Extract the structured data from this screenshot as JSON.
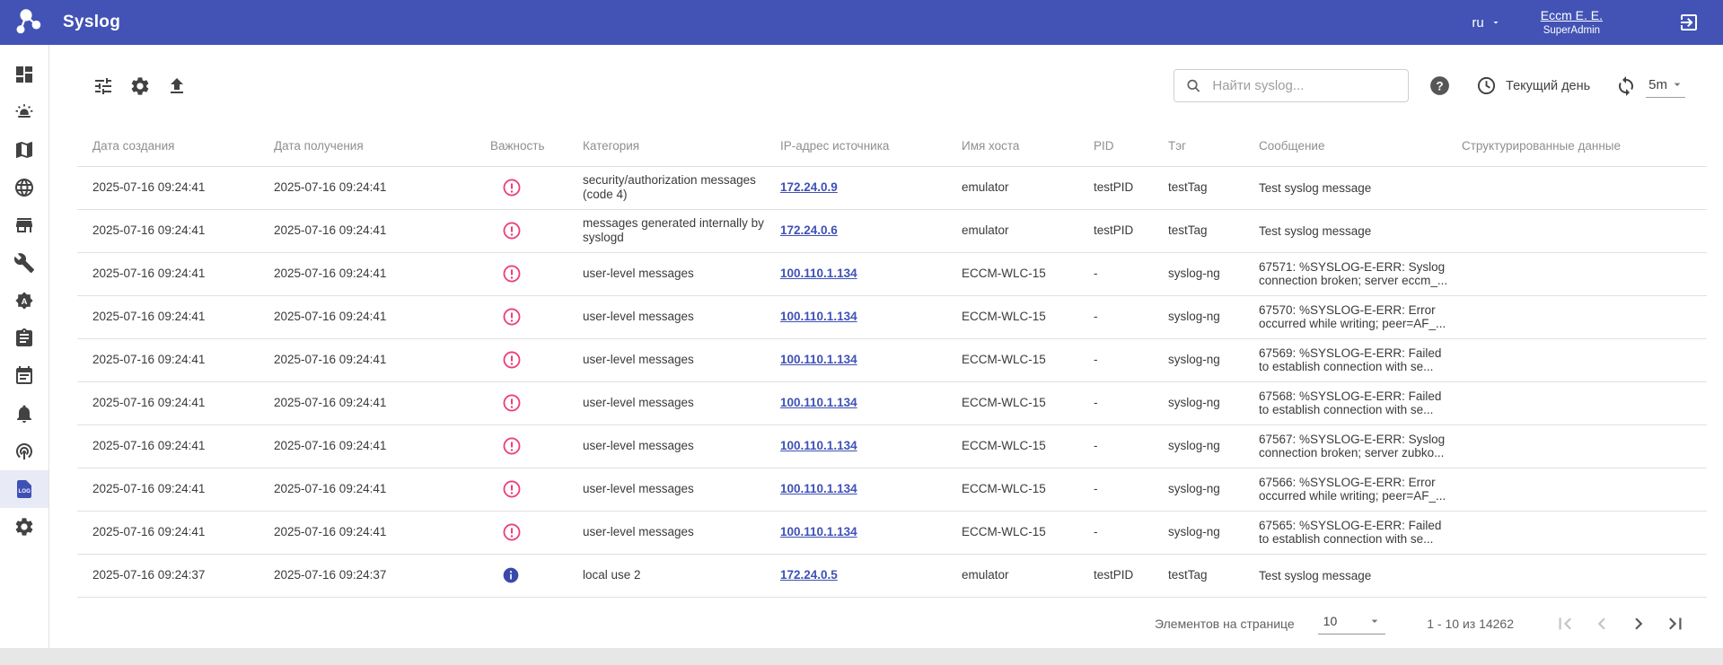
{
  "header": {
    "app_title": "Syslog",
    "language": "ru",
    "user_name": "Eccm E. E.",
    "user_role": "SuperAdmin"
  },
  "sidebar": {
    "items": [
      "dashboard",
      "alarms",
      "map",
      "network-globe",
      "storefront",
      "tools-wrench",
      "badge-a",
      "tasks-clipboard",
      "event-calendar",
      "notifications-bell",
      "podcasts",
      "syslog-log",
      "settings"
    ],
    "active_item": "syslog-log"
  },
  "toolbar": {
    "search_placeholder": "Найти syslog...",
    "period": "Текущий день",
    "interval": "5m"
  },
  "table": {
    "columns": [
      "Дата создания",
      "Дата получения",
      "Важность",
      "Категория",
      "IP-адрес источника",
      "Имя хоста",
      "PID",
      "Тэг",
      "Сообщение",
      "Структурированные данные"
    ],
    "rows": [
      {
        "created": "2025-07-16 09:24:41",
        "received": "2025-07-16 09:24:41",
        "severity": "error",
        "category": "security/authorization messages (code 4)",
        "source_ip": "172.24.0.9",
        "host": "emulator",
        "pid": "testPID",
        "tag": "testTag",
        "message": "Test syslog message",
        "structured": ""
      },
      {
        "created": "2025-07-16 09:24:41",
        "received": "2025-07-16 09:24:41",
        "severity": "error",
        "category": "messages generated internally by syslogd",
        "source_ip": "172.24.0.6",
        "host": "emulator",
        "pid": "testPID",
        "tag": "testTag",
        "message": "Test syslog message",
        "structured": ""
      },
      {
        "created": "2025-07-16 09:24:41",
        "received": "2025-07-16 09:24:41",
        "severity": "error",
        "category": "user-level messages",
        "source_ip": "100.110.1.134",
        "host": "ECCM-WLC-15",
        "pid": "-",
        "tag": "syslog-ng",
        "message": "67571: %SYSLOG-E-ERR: Syslog connection broken; server eccm_...",
        "structured": ""
      },
      {
        "created": "2025-07-16 09:24:41",
        "received": "2025-07-16 09:24:41",
        "severity": "error",
        "category": "user-level messages",
        "source_ip": "100.110.1.134",
        "host": "ECCM-WLC-15",
        "pid": "-",
        "tag": "syslog-ng",
        "message": "67570: %SYSLOG-E-ERR: Error occurred while writing; peer=AF_...",
        "structured": ""
      },
      {
        "created": "2025-07-16 09:24:41",
        "received": "2025-07-16 09:24:41",
        "severity": "error",
        "category": "user-level messages",
        "source_ip": "100.110.1.134",
        "host": "ECCM-WLC-15",
        "pid": "-",
        "tag": "syslog-ng",
        "message": "67569: %SYSLOG-E-ERR: Failed to establish connection with se...",
        "structured": ""
      },
      {
        "created": "2025-07-16 09:24:41",
        "received": "2025-07-16 09:24:41",
        "severity": "error",
        "category": "user-level messages",
        "source_ip": "100.110.1.134",
        "host": "ECCM-WLC-15",
        "pid": "-",
        "tag": "syslog-ng",
        "message": "67568: %SYSLOG-E-ERR: Failed to establish connection with se...",
        "structured": ""
      },
      {
        "created": "2025-07-16 09:24:41",
        "received": "2025-07-16 09:24:41",
        "severity": "error",
        "category": "user-level messages",
        "source_ip": "100.110.1.134",
        "host": "ECCM-WLC-15",
        "pid": "-",
        "tag": "syslog-ng",
        "message": "67567: %SYSLOG-E-ERR: Syslog connection broken; server zubko...",
        "structured": ""
      },
      {
        "created": "2025-07-16 09:24:41",
        "received": "2025-07-16 09:24:41",
        "severity": "error",
        "category": "user-level messages",
        "source_ip": "100.110.1.134",
        "host": "ECCM-WLC-15",
        "pid": "-",
        "tag": "syslog-ng",
        "message": "67566: %SYSLOG-E-ERR: Error occurred while writing; peer=AF_...",
        "structured": ""
      },
      {
        "created": "2025-07-16 09:24:41",
        "received": "2025-07-16 09:24:41",
        "severity": "error",
        "category": "user-level messages",
        "source_ip": "100.110.1.134",
        "host": "ECCM-WLC-15",
        "pid": "-",
        "tag": "syslog-ng",
        "message": "67565: %SYSLOG-E-ERR: Failed to establish connection with se...",
        "structured": ""
      },
      {
        "created": "2025-07-16 09:24:37",
        "received": "2025-07-16 09:24:37",
        "severity": "info",
        "category": "local use 2",
        "source_ip": "172.24.0.5",
        "host": "emulator",
        "pid": "testPID",
        "tag": "testTag",
        "message": "Test syslog message",
        "structured": ""
      }
    ]
  },
  "pagination": {
    "per_page_label": "Элементов на странице",
    "per_page": "10",
    "range": "1 - 10 из 14262"
  },
  "colors": {
    "header_bg": "#4253b5",
    "accent": "#3f51b5",
    "active_item_bg": "#e8eaf6",
    "error_icon": "#ec4076",
    "info_icon": "#3949ab",
    "link": "#3f51b5"
  }
}
